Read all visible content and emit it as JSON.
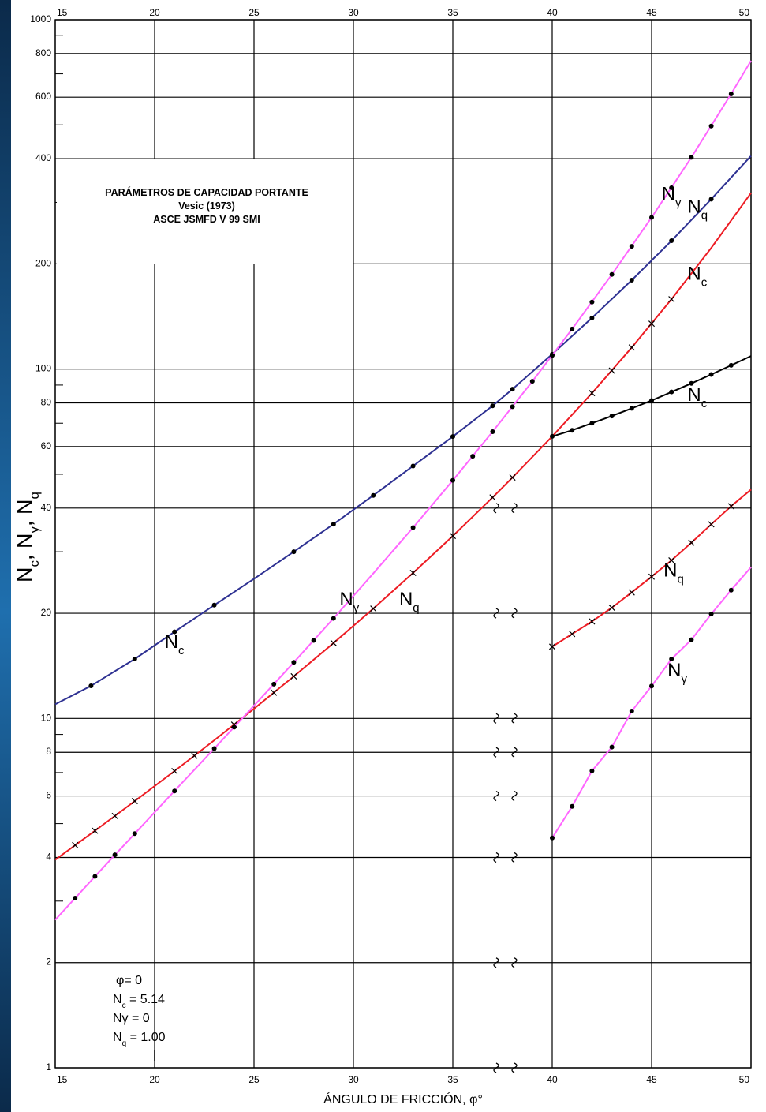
{
  "chart_data": {
    "type": "line",
    "title_lines": [
      "PARÁMETROS DE CAPACIDAD PORTANTE",
      "Vesic (1973)",
      "ASCE JSMFD V 99 SMI"
    ],
    "xlabel": "ÁNGULO DE FRICCIÓN, φ°",
    "ylabel": {
      "parts": [
        "N",
        "c",
        ", N",
        "γ",
        ", N",
        "q"
      ]
    },
    "x_ticks": [
      15,
      20,
      25,
      30,
      35,
      40,
      45,
      50
    ],
    "x_tick_labels": [
      "15",
      "20",
      "25",
      "30",
      "35",
      "40",
      "45",
      "50"
    ],
    "y_ticks": [
      1,
      2,
      4,
      6,
      8,
      10,
      20,
      40,
      60,
      80,
      100,
      200,
      400,
      600,
      800,
      1000
    ],
    "y_tick_labels": [
      "1",
      "2",
      "4",
      "6",
      "8",
      "10",
      "20",
      "40",
      "60",
      "80",
      "100",
      "200",
      "400",
      "600",
      "800",
      "1000"
    ],
    "xlim": [
      15,
      50
    ],
    "ylim": [
      1,
      1000
    ],
    "yscale": "log",
    "colors": {
      "nc": "#2e3192",
      "nq": "#ed1c24",
      "ngamma": "#ff66ff",
      "nc_scaled": "#000000",
      "frame": "#000000"
    },
    "series": [
      {
        "id": "nc",
        "name_parts": [
          "N",
          "c"
        ],
        "color": "#2e3192",
        "marker": "dot",
        "x": [
          15,
          16.8,
          19,
          21,
          23,
          25,
          27,
          29,
          31,
          33,
          35,
          37,
          38,
          40,
          42,
          44,
          46,
          48,
          50
        ],
        "y": [
          10.98,
          12.4,
          14.8,
          17.7,
          21.1,
          25.1,
          30.0,
          36.0,
          43.5,
          52.8,
          64.1,
          78.5,
          87.6,
          110.3,
          140.1,
          179.7,
          233.0,
          306.5,
          407.5
        ],
        "mark_x": [
          16.8,
          19,
          21,
          23,
          27,
          29,
          31,
          33,
          35,
          37,
          38,
          40,
          42,
          44,
          46,
          48
        ],
        "mark_y": [
          12.4,
          14.8,
          17.7,
          21.1,
          30.0,
          36.0,
          43.5,
          52.8,
          64.1,
          78.5,
          87.6,
          110.3,
          140.1,
          179.7,
          233.0,
          306.5
        ]
      },
      {
        "id": "nq",
        "name_parts": [
          "N",
          "q"
        ],
        "color": "#ed1c24",
        "marker": "x",
        "x": [
          15,
          17,
          19,
          21,
          23,
          25,
          27,
          29,
          31,
          33,
          35,
          37,
          38,
          40,
          42,
          44,
          46,
          48,
          50
        ],
        "y": [
          3.94,
          4.77,
          5.8,
          7.07,
          8.66,
          10.66,
          13.2,
          16.44,
          20.63,
          26.09,
          33.3,
          42.92,
          48.93,
          64.2,
          85.38,
          115.31,
          158.51,
          222.31,
          319.07
        ],
        "mark_x": [
          16,
          17,
          18,
          19,
          21,
          22,
          24,
          26,
          27,
          29,
          31,
          33,
          35,
          37,
          38,
          42,
          43,
          44,
          45,
          46
        ],
        "mark_y": [
          4.34,
          4.77,
          5.26,
          5.8,
          7.07,
          7.82,
          9.6,
          11.85,
          13.2,
          16.44,
          20.63,
          26.09,
          33.3,
          42.92,
          48.93,
          85.38,
          99.02,
          115.31,
          134.88,
          158.51
        ]
      },
      {
        "id": "ngamma",
        "name_parts": [
          "N",
          "γ"
        ],
        "color": "#ff66ff",
        "marker": "dot",
        "x": [
          15,
          17,
          19,
          21,
          23,
          25,
          27,
          29,
          31,
          33,
          35,
          37,
          39,
          41,
          43,
          45,
          47,
          49,
          50
        ],
        "y": [
          2.65,
          3.53,
          4.68,
          6.2,
          8.2,
          10.88,
          14.47,
          19.34,
          26.0,
          35.19,
          48.03,
          66.19,
          92.25,
          130.22,
          186.54,
          271.76,
          403.67,
          613.16,
          762.89
        ],
        "mark_x": [
          16,
          17,
          18,
          19,
          21,
          23,
          24,
          26,
          27,
          28,
          29,
          33,
          35,
          36,
          37,
          38,
          39,
          40,
          41,
          42,
          43,
          44,
          45,
          46,
          47,
          48,
          49
        ],
        "mark_y": [
          3.06,
          3.53,
          4.07,
          4.68,
          6.2,
          8.2,
          9.44,
          12.54,
          14.47,
          16.72,
          19.34,
          35.19,
          48.03,
          56.31,
          66.19,
          78.03,
          92.25,
          109.41,
          130.22,
          155.55,
          186.54,
          224.64,
          271.76,
          330.35,
          403.67,
          496.01,
          613.16
        ]
      },
      {
        "id": "nc_scaled",
        "name_parts": [
          "N",
          "c"
        ],
        "color": "#000000",
        "marker": "dot",
        "x": [
          40,
          41,
          42,
          43,
          44,
          45,
          46,
          47,
          48,
          49,
          50
        ],
        "y": [
          64.2,
          66.8,
          70.0,
          73.4,
          77.2,
          81.3,
          86.0,
          91.0,
          96.5,
          102.5,
          109.0
        ],
        "mark_x": [
          40,
          41,
          42,
          43,
          44,
          45,
          46,
          47,
          48,
          49
        ],
        "mark_y": [
          64.2,
          66.8,
          70.0,
          73.4,
          77.2,
          81.3,
          86.0,
          91.0,
          96.5,
          102.5
        ]
      },
      {
        "id": "nq_scaled",
        "name_parts": [
          "N",
          "q"
        ],
        "color": "#ed1c24",
        "marker": "x",
        "x": [
          40,
          41,
          42,
          43,
          44,
          45,
          46,
          47,
          48,
          49,
          50
        ],
        "y": [
          16.05,
          17.45,
          18.95,
          20.75,
          22.95,
          25.45,
          28.35,
          31.85,
          35.95,
          40.5,
          45.2
        ],
        "mark_x": [
          40,
          41,
          42,
          43,
          44,
          45,
          46,
          47,
          48,
          49
        ],
        "mark_y": [
          16.05,
          17.45,
          18.95,
          20.75,
          22.95,
          25.45,
          28.35,
          31.85,
          35.95,
          40.5
        ]
      },
      {
        "id": "ngamma_scaled",
        "name_parts": [
          "N",
          "γ"
        ],
        "color": "#ff66ff",
        "marker": "dot",
        "x": [
          40,
          41,
          42,
          43,
          44,
          45,
          46,
          47,
          48,
          49,
          50
        ],
        "y": [
          4.55,
          5.6,
          7.08,
          8.28,
          10.5,
          12.38,
          14.8,
          16.8,
          19.9,
          23.3,
          27.1
        ],
        "mark_x": [
          40,
          41,
          42,
          43,
          44,
          45,
          46,
          47,
          48,
          49
        ],
        "mark_y": [
          4.55,
          5.6,
          7.08,
          8.28,
          10.5,
          12.38,
          14.8,
          16.8,
          19.9,
          23.3
        ]
      }
    ],
    "curve_labels": [
      {
        "series": "nc",
        "parts": [
          "N",
          "c"
        ],
        "x": 20.5,
        "y": 15.9
      },
      {
        "series": "ngamma",
        "parts": [
          "N",
          "γ"
        ],
        "x": 29.3,
        "y": 21.1
      },
      {
        "series": "nq",
        "parts": [
          "N",
          "q"
        ],
        "x": 32.3,
        "y": 21.1
      },
      {
        "series": "ngamma",
        "parts": [
          "N",
          "γ"
        ],
        "x": 45.5,
        "y": 305
      },
      {
        "series": "nq",
        "parts": [
          "N",
          "q"
        ],
        "x": 46.8,
        "y": 280
      },
      {
        "series": "nc",
        "parts": [
          "N",
          "c"
        ],
        "x": 46.8,
        "y": 180
      },
      {
        "series": "nc_scaled",
        "parts": [
          "N",
          "c"
        ],
        "x": 46.8,
        "y": 81
      },
      {
        "series": "nq_scaled",
        "parts": [
          "N",
          "q"
        ],
        "x": 45.6,
        "y": 25.5
      },
      {
        "series": "ngamma_scaled",
        "parts": [
          "N",
          "γ"
        ],
        "x": 45.8,
        "y": 13.2
      }
    ],
    "phi_zero_note": {
      "line1": "φ= 0",
      "nc": {
        "parts": [
          "N",
          "c",
          " = 5.14"
        ]
      },
      "ng": {
        "parts": [
          "Nγ = 0"
        ]
      },
      "nq": {
        "parts": [
          "N",
          "q",
          " = 1.00"
        ]
      }
    },
    "grid": true,
    "legend": "none"
  }
}
